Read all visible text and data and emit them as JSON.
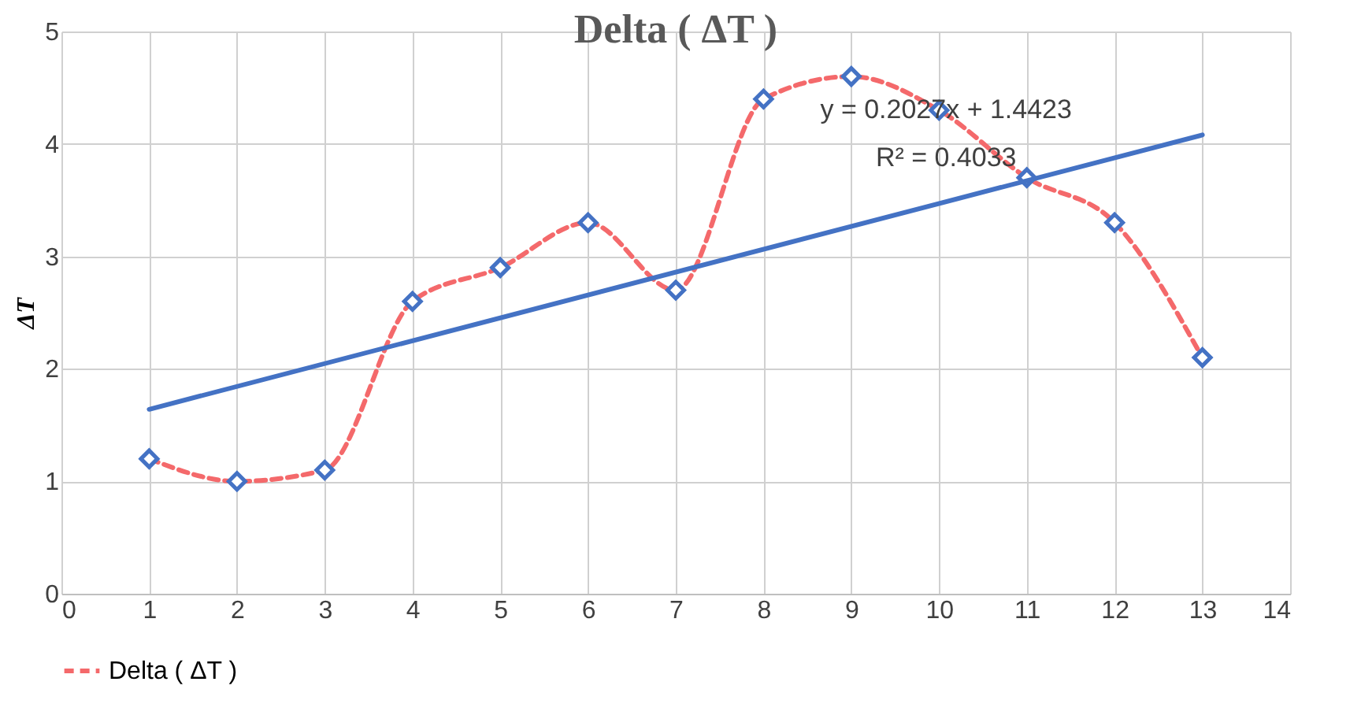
{
  "chart_data": {
    "type": "line",
    "title": "Delta  ( ΔT )",
    "ylabel": "ΔT",
    "x": [
      1,
      2,
      3,
      4,
      5,
      6,
      7,
      8,
      9,
      10,
      11,
      12,
      13
    ],
    "series": [
      {
        "name": "Delta  ( ΔT )",
        "color": "#f4696b",
        "values": [
          1.2,
          1.0,
          1.1,
          2.6,
          2.9,
          3.3,
          2.7,
          4.4,
          4.6,
          4.3,
          3.7,
          3.3,
          2.1
        ],
        "marker": "diamond",
        "line_style": "dashed"
      },
      {
        "type": "line",
        "color": "#4472c4",
        "x": [
          1,
          13
        ],
        "values": [
          1.64,
          4.08
        ],
        "line_style": "solid"
      }
    ],
    "annotations": [
      "y = 0.2027x + 1.4423",
      "R² = 0.4033"
    ],
    "xlim": [
      0,
      14
    ],
    "xticks": [
      0,
      1,
      2,
      3,
      4,
      5,
      6,
      7,
      8,
      9,
      10,
      11,
      12,
      13,
      14
    ],
    "ylim": [
      0,
      5
    ],
    "yticks": [
      0,
      1,
      2,
      3,
      4,
      5
    ],
    "grid": true,
    "legend": "bottom"
  }
}
